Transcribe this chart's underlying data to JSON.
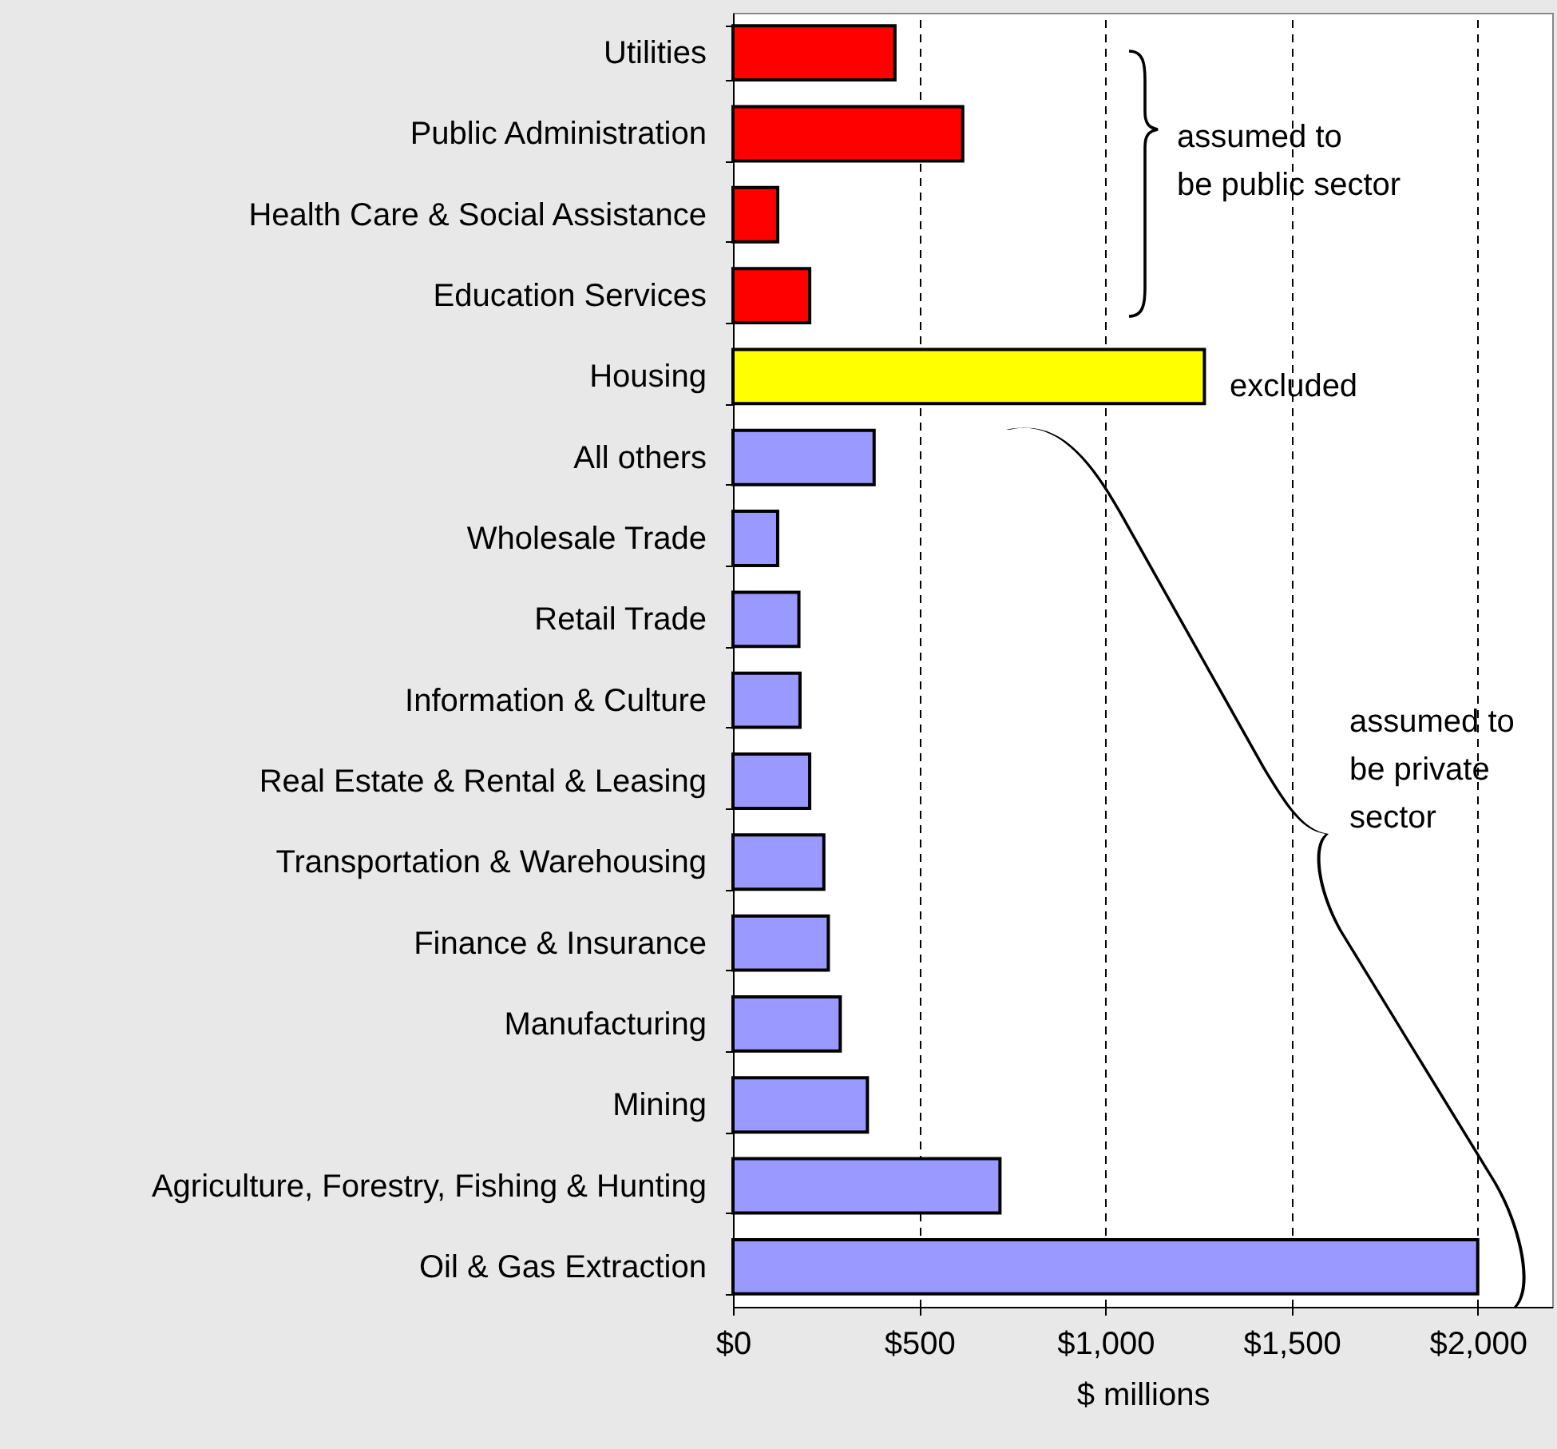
{
  "chart_data": {
    "type": "bar",
    "orientation": "horizontal",
    "xlabel": "$ millions",
    "categories": [
      "Utilities",
      "Public Administration",
      "Health Care & Social Assistance",
      "Education Services",
      "Housing",
      "All others",
      "Wholesale Trade",
      "Retail Trade",
      "Information & Culture",
      "Real Estate & Rental & Leasing",
      "Transportation & Warehousing",
      "Finance & Insurance",
      "Manufacturing",
      "Mining",
      "Agriculture, Forestry, Fishing & Hunting",
      "Oil & Gas Extraction"
    ],
    "values": [
      435,
      617,
      120,
      206,
      1266,
      379,
      120,
      177,
      180,
      206,
      244,
      256,
      288,
      361,
      717,
      2000
    ],
    "colors": [
      "#ff0000",
      "#ff0000",
      "#ff0000",
      "#ff0000",
      "#ffff00",
      "#9999ff",
      "#9999ff",
      "#9999ff",
      "#9999ff",
      "#9999ff",
      "#9999ff",
      "#9999ff",
      "#9999ff",
      "#9999ff",
      "#9999ff",
      "#9999ff"
    ],
    "xlim": [
      0,
      2200
    ],
    "xticks": [
      {
        "value": 0,
        "label": "$0"
      },
      {
        "value": 500,
        "label": "$500"
      },
      {
        "value": 1000,
        "label": "$1,000"
      },
      {
        "value": 1500,
        "label": "$1,500"
      },
      {
        "value": 2000,
        "label": "$2,000"
      }
    ],
    "grid": "x",
    "annotations": [
      "assumed to\nbe public sector",
      "excluded",
      "assumed to\nbe private\nsector"
    ]
  }
}
